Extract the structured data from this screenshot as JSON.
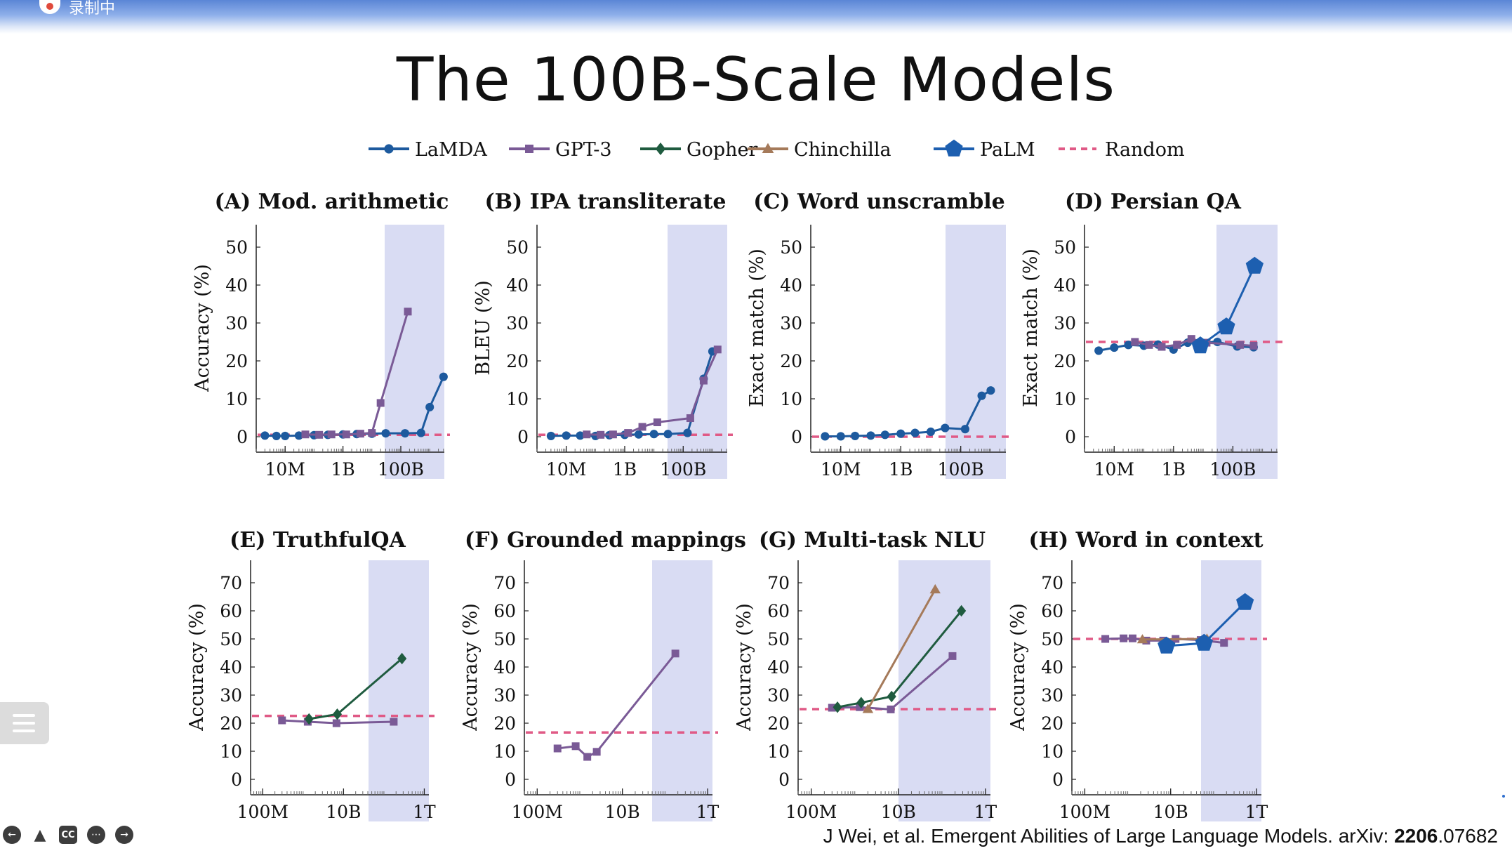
{
  "recording": {
    "label": "录制中"
  },
  "slide": {
    "title": "The 100B-Scale Models",
    "citation_prefix": "J Wei, et al. Emergent Abilities of Large Language Models. arXiv: ",
    "citation_bold": "2206",
    "citation_suffix": ".07682"
  },
  "legend": [
    {
      "name": "LaMDA",
      "color": "#1d5a9e",
      "marker": "circle"
    },
    {
      "name": "GPT-3",
      "color": "#7a5a96",
      "marker": "square"
    },
    {
      "name": "Gopher",
      "color": "#1f5b3f",
      "marker": "diamond"
    },
    {
      "name": "Chinchilla",
      "color": "#a57a5a",
      "marker": "triangle"
    },
    {
      "name": "PaLM",
      "color": "#1d5fb0",
      "marker": "pentagon"
    },
    {
      "name": "Random",
      "color": "#e05a86",
      "marker": "dashed"
    }
  ],
  "colors": {
    "highlight_band": "#d9dcf3",
    "axis": "#222222"
  },
  "chart_data": [
    {
      "type": "line",
      "title": "(A) Mod. arithmetic",
      "ylabel": "Accuracy (%)",
      "xscale": "log",
      "xticks": [
        "10M",
        "1B",
        "100B"
      ],
      "yticks": [
        0,
        10,
        20,
        30,
        40,
        50
      ],
      "ylim": [
        0,
        50
      ],
      "highlight": "100B region",
      "series": [
        {
          "name": "LaMDA",
          "points": [
            [
              2000000.0,
              0.3
            ],
            [
              5000000.0,
              0.2
            ],
            [
              10000000.0,
              0.2
            ],
            [
              30000000.0,
              0.3
            ],
            [
              100000000.0,
              0.4
            ],
            [
              300000000.0,
              0.5
            ],
            [
              1000000000.0,
              0.6
            ],
            [
              3000000000.0,
              0.7
            ],
            [
              10000000000.0,
              0.8
            ],
            [
              30000000000.0,
              0.9
            ],
            [
              140000000000.0,
              0.9
            ],
            [
              500000000000.0,
              1.0
            ],
            [
              1000000000000.0,
              7.8
            ],
            [
              3000000000000.0,
              15.8
            ]
          ]
        },
        {
          "name": "GPT-3",
          "points": [
            [
              50000000.0,
              0.6
            ],
            [
              150000000.0,
              0.5
            ],
            [
              400000000.0,
              0.6
            ],
            [
              1300000000.0,
              0.6
            ],
            [
              4000000000.0,
              0.8
            ],
            [
              10000000000.0,
              1.0
            ],
            [
              20000000000.0,
              8.9
            ],
            [
              175000000000.0,
              33.0
            ]
          ]
        },
        {
          "name": "Random",
          "random": 0.5
        }
      ]
    },
    {
      "type": "line",
      "title": "(B) IPA transliterate",
      "ylabel": "BLEU (%)",
      "xscale": "log",
      "xticks": [
        "10M",
        "1B",
        "100B"
      ],
      "yticks": [
        0,
        10,
        20,
        30,
        40,
        50
      ],
      "ylim": [
        0,
        50
      ],
      "highlight": "100B region",
      "series": [
        {
          "name": "LaMDA",
          "points": [
            [
              3000000.0,
              0.2
            ],
            [
              10000000.0,
              0.3
            ],
            [
              30000000.0,
              0.3
            ],
            [
              100000000.0,
              0.2
            ],
            [
              300000000.0,
              0.4
            ],
            [
              1000000000.0,
              0.5
            ],
            [
              3000000000.0,
              0.6
            ],
            [
              10000000000.0,
              0.7
            ],
            [
              30000000000.0,
              0.7
            ],
            [
              140000000000.0,
              1.0
            ],
            [
              500000000000.0,
              15.3
            ],
            [
              1000000000000.0,
              22.5
            ]
          ]
        },
        {
          "name": "GPT-3",
          "points": [
            [
              50000000.0,
              0.6
            ],
            [
              150000000.0,
              0.5
            ],
            [
              400000000.0,
              0.6
            ],
            [
              1300000000.0,
              1.0
            ],
            [
              4000000000.0,
              2.6
            ],
            [
              13000000000.0,
              3.8
            ],
            [
              175000000000.0,
              4.9
            ],
            [
              500000000000.0,
              14.8
            ],
            [
              1500000000000.0,
              23.0
            ]
          ]
        },
        {
          "name": "Random",
          "random": 0.5
        }
      ]
    },
    {
      "type": "line",
      "title": "(C) Word unscramble",
      "ylabel": "Exact match (%)",
      "xscale": "log",
      "xticks": [
        "10M",
        "1B",
        "100B"
      ],
      "yticks": [
        0,
        10,
        20,
        30,
        40,
        50
      ],
      "ylim": [
        0,
        50
      ],
      "highlight": "100B region",
      "series": [
        {
          "name": "LaMDA",
          "points": [
            [
              3000000.0,
              0.1
            ],
            [
              10000000.0,
              0.1
            ],
            [
              30000000.0,
              0.2
            ],
            [
              100000000.0,
              0.3
            ],
            [
              300000000.0,
              0.5
            ],
            [
              1000000000.0,
              0.8
            ],
            [
              3000000000.0,
              1.0
            ],
            [
              10000000000.0,
              1.3
            ],
            [
              30000000000.0,
              2.3
            ],
            [
              140000000000.0,
              2.0
            ],
            [
              500000000000.0,
              10.8
            ],
            [
              1000000000000.0,
              12.2
            ]
          ]
        },
        {
          "name": "Random",
          "random": 0
        }
      ]
    },
    {
      "type": "line",
      "title": "(D) Persian QA",
      "ylabel": "Exact match (%)",
      "xscale": "log",
      "xticks": [
        "10M",
        "1B",
        "100B"
      ],
      "yticks": [
        0,
        10,
        20,
        30,
        40,
        50
      ],
      "ylim": [
        0,
        50
      ],
      "highlight": "100B region",
      "series": [
        {
          "name": "LaMDA",
          "points": [
            [
              3000000.0,
              22.7
            ],
            [
              10000000.0,
              23.5
            ],
            [
              30000000.0,
              24.2
            ],
            [
              100000000.0,
              24.0
            ],
            [
              300000000.0,
              24.3
            ],
            [
              1000000000.0,
              23.0
            ],
            [
              3000000000.0,
              24.8
            ],
            [
              30000000000.0,
              25.0
            ],
            [
              140000000000.0,
              23.8
            ],
            [
              500000000000.0,
              23.6
            ]
          ]
        },
        {
          "name": "GPT-3",
          "points": [
            [
              50000000.0,
              25.0
            ],
            [
              150000000.0,
              24.2
            ],
            [
              400000000.0,
              23.7
            ],
            [
              1300000000.0,
              24.2
            ],
            [
              4000000000.0,
              25.8
            ],
            [
              13000000000.0,
              24.8
            ],
            [
              175000000000.0,
              24.2
            ],
            [
              500000000000.0,
              24.0
            ]
          ]
        },
        {
          "name": "PaLM",
          "points": [
            [
              8000000000.0,
              24.0
            ],
            [
              60000000000.0,
              29.0
            ],
            [
              540000000000.0,
              45.0
            ]
          ]
        },
        {
          "name": "Random",
          "random": 25
        }
      ]
    },
    {
      "type": "line",
      "title": "(E) TruthfulQA",
      "ylabel": "Accuracy (%)",
      "xscale": "log",
      "xticks": [
        "100M",
        "10B",
        "1T"
      ],
      "yticks": [
        0,
        10,
        20,
        30,
        40,
        50,
        60,
        70
      ],
      "ylim": [
        0,
        70
      ],
      "highlight": "1T region",
      "series": [
        {
          "name": "GPT-3",
          "points": [
            [
              300000000.0,
              21.0
            ],
            [
              1300000000.0,
              20.5
            ],
            [
              6700000000.0,
              20.0
            ],
            [
              175000000000.0,
              20.5
            ]
          ]
        },
        {
          "name": "Gopher",
          "points": [
            [
              1400000000.0,
              21.5
            ],
            [
              7000000000.0,
              23.2
            ],
            [
              280000000000.0,
              43.0
            ]
          ]
        },
        {
          "name": "Random",
          "random": 22.6
        }
      ]
    },
    {
      "type": "line",
      "title": "(F) Grounded mappings",
      "ylabel": "Accuracy (%)",
      "xscale": "log",
      "xticks": [
        "100M",
        "10B",
        "1T"
      ],
      "yticks": [
        0,
        10,
        20,
        30,
        40,
        50,
        60,
        70
      ],
      "ylim": [
        0,
        70
      ],
      "highlight": "1T region",
      "series": [
        {
          "name": "GPT-3",
          "points": [
            [
              300000000.0,
              11.0
            ],
            [
              800000000.0,
              11.8
            ],
            [
              1500000000.0,
              8.0
            ],
            [
              2500000000.0,
              9.8
            ],
            [
              175000000000.0,
              44.8
            ]
          ]
        },
        {
          "name": "Random",
          "random": 16.7
        }
      ]
    },
    {
      "type": "line",
      "title": "(G) Multi-task NLU",
      "ylabel": "Accuracy (%)",
      "xscale": "log",
      "xticks": [
        "100M",
        "10B",
        "1T"
      ],
      "yticks": [
        0,
        10,
        20,
        30,
        40,
        50,
        60,
        70
      ],
      "ylim": [
        0,
        70
      ],
      "highlight": "1T region",
      "series": [
        {
          "name": "GPT-3",
          "points": [
            [
              300000000.0,
              25.5
            ],
            [
              1300000000.0,
              25.7
            ],
            [
              6700000000.0,
              24.9
            ],
            [
              175000000000.0,
              43.9
            ]
          ]
        },
        {
          "name": "Gopher",
          "points": [
            [
              400000000.0,
              25.7
            ],
            [
              1400000000.0,
              27.3
            ],
            [
              7000000000.0,
              29.5
            ],
            [
              280000000000.0,
              60.0
            ]
          ]
        },
        {
          "name": "Chinchilla",
          "points": [
            [
              2000000000.0,
              25.0
            ],
            [
              70000000000.0,
              67.6
            ]
          ]
        },
        {
          "name": "Random",
          "random": 25
        }
      ]
    },
    {
      "type": "line",
      "title": "(H) Word in context",
      "ylabel": "Accuracy (%)",
      "xscale": "log",
      "xticks": [
        "100M",
        "10B",
        "1T"
      ],
      "yticks": [
        0,
        10,
        20,
        30,
        40,
        50,
        60,
        70
      ],
      "ylim": [
        0,
        70
      ],
      "highlight": "1T region",
      "series": [
        {
          "name": "GPT-3",
          "points": [
            [
              300000000.0,
              50.0
            ],
            [
              800000000.0,
              50.2
            ],
            [
              1300000000.0,
              50.2
            ],
            [
              2700000000.0,
              49.4
            ],
            [
              6700000000.0,
              49.4
            ],
            [
              13000000000.0,
              50.0
            ],
            [
              50000000000.0,
              49.6
            ],
            [
              175000000000.0,
              48.6
            ]
          ]
        },
        {
          "name": "Chinchilla",
          "points": [
            [
              2200000000.0,
              49.8
            ],
            [
              70000000000.0,
              50.0
            ]
          ]
        },
        {
          "name": "PaLM",
          "points": [
            [
              8000000000.0,
              47.5
            ],
            [
              60000000000.0,
              48.5
            ],
            [
              540000000000.0,
              63.0
            ]
          ]
        },
        {
          "name": "Random",
          "random": 50
        }
      ]
    }
  ]
}
